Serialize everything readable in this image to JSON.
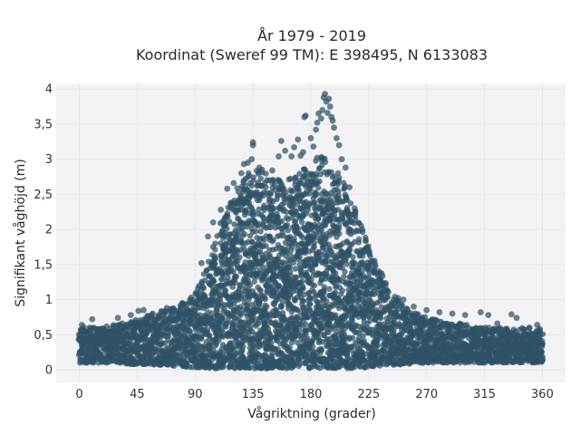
{
  "chart_data": {
    "type": "scatter",
    "title_lines": [
      "År 1979 - 2019",
      "Koordinat (Sweref 99 TM): E 398495, N 6133083"
    ],
    "xlabel": "Vågriktning (grader)",
    "ylabel": "Signifikant våghöjd (m)",
    "xlim": [
      -18,
      378
    ],
    "ylim": [
      -0.18,
      4.08
    ],
    "xticks": [
      0,
      45,
      90,
      135,
      180,
      225,
      270,
      315,
      360
    ],
    "xtick_labels": [
      "0",
      "45",
      "90",
      "135",
      "180",
      "225",
      "270",
      "315",
      "360"
    ],
    "yticks": [
      0,
      0.5,
      1,
      1.5,
      2,
      2.5,
      3,
      3.5,
      4
    ],
    "ytick_labels": [
      "0",
      "0,5",
      "1",
      "1,5",
      "2",
      "2,5",
      "3",
      "3,5",
      "4"
    ],
    "grid": true,
    "marker_color": "#2f5266",
    "marker_opacity": 0.72,
    "envelope": {
      "direction": [
        0,
        10,
        20,
        30,
        40,
        50,
        60,
        70,
        80,
        90,
        100,
        110,
        120,
        130,
        140,
        150,
        160,
        170,
        180,
        190,
        200,
        210,
        220,
        230,
        240,
        250,
        260,
        270,
        280,
        290,
        300,
        310,
        320,
        330,
        340,
        350,
        360
      ],
      "upper_height": [
        0.62,
        0.6,
        0.62,
        0.65,
        0.7,
        0.76,
        0.82,
        0.88,
        0.95,
        1.1,
        1.5,
        2.1,
        2.55,
        2.8,
        2.85,
        2.75,
        2.7,
        2.8,
        3.0,
        3.05,
        2.85,
        2.5,
        2.0,
        1.55,
        1.2,
        0.95,
        0.82,
        0.75,
        0.7,
        0.68,
        0.65,
        0.62,
        0.6,
        0.6,
        0.62,
        0.6,
        0.6
      ],
      "lower_height": [
        0.1,
        0.1,
        0.1,
        0.1,
        0.08,
        0.08,
        0.07,
        0.06,
        0.05,
        0.03,
        0.02,
        0.02,
        0.02,
        0.02,
        0.02,
        0.02,
        0.02,
        0.02,
        0.02,
        0.02,
        0.02,
        0.02,
        0.03,
        0.05,
        0.06,
        0.07,
        0.08,
        0.1,
        0.1,
        0.1,
        0.1,
        0.1,
        0.1,
        0.1,
        0.1,
        0.1,
        0.1
      ]
    },
    "outlier_points": [
      {
        "x": 2,
        "y": 0.64
      },
      {
        "x": 10,
        "y": 0.72
      },
      {
        "x": 30,
        "y": 0.74
      },
      {
        "x": 40,
        "y": 0.78
      },
      {
        "x": 46,
        "y": 0.84
      },
      {
        "x": 50,
        "y": 0.85
      },
      {
        "x": 57,
        "y": 0.8
      },
      {
        "x": 68,
        "y": 0.88
      },
      {
        "x": 80,
        "y": 0.95
      },
      {
        "x": 95,
        "y": 1.52
      },
      {
        "x": 100,
        "y": 1.9
      },
      {
        "x": 104,
        "y": 2.1
      },
      {
        "x": 110,
        "y": 2.28
      },
      {
        "x": 115,
        "y": 2.58
      },
      {
        "x": 120,
        "y": 2.66
      },
      {
        "x": 126,
        "y": 2.8
      },
      {
        "x": 128,
        "y": 2.93
      },
      {
        "x": 131,
        "y": 2.95
      },
      {
        "x": 134,
        "y": 3.0
      },
      {
        "x": 135,
        "y": 3.2
      },
      {
        "x": 135,
        "y": 3.24
      },
      {
        "x": 140,
        "y": 2.88
      },
      {
        "x": 142,
        "y": 2.85
      },
      {
        "x": 146,
        "y": 2.7
      },
      {
        "x": 150,
        "y": 2.84
      },
      {
        "x": 155,
        "y": 3.04
      },
      {
        "x": 157,
        "y": 3.26
      },
      {
        "x": 160,
        "y": 3.12
      },
      {
        "x": 165,
        "y": 3.04
      },
      {
        "x": 167,
        "y": 3.17
      },
      {
        "x": 170,
        "y": 3.28
      },
      {
        "x": 172,
        "y": 3.05
      },
      {
        "x": 174,
        "y": 3.1
      },
      {
        "x": 175,
        "y": 3.6
      },
      {
        "x": 176,
        "y": 3.62
      },
      {
        "x": 180,
        "y": 3.3
      },
      {
        "x": 182,
        "y": 3.18
      },
      {
        "x": 184,
        "y": 3.42
      },
      {
        "x": 185,
        "y": 3.52
      },
      {
        "x": 186,
        "y": 3.65
      },
      {
        "x": 188,
        "y": 3.58
      },
      {
        "x": 189,
        "y": 3.7
      },
      {
        "x": 190,
        "y": 3.88
      },
      {
        "x": 191,
        "y": 3.93
      },
      {
        "x": 192,
        "y": 3.82
      },
      {
        "x": 193,
        "y": 3.66
      },
      {
        "x": 194,
        "y": 3.86
      },
      {
        "x": 195,
        "y": 3.75
      },
      {
        "x": 196,
        "y": 3.6
      },
      {
        "x": 197,
        "y": 3.55
      },
      {
        "x": 198,
        "y": 3.45
      },
      {
        "x": 200,
        "y": 3.3
      },
      {
        "x": 202,
        "y": 3.2
      },
      {
        "x": 204,
        "y": 3.0
      },
      {
        "x": 207,
        "y": 2.88
      },
      {
        "x": 210,
        "y": 2.6
      },
      {
        "x": 214,
        "y": 2.3
      },
      {
        "x": 220,
        "y": 2.0
      },
      {
        "x": 224,
        "y": 1.7
      },
      {
        "x": 228,
        "y": 1.55
      },
      {
        "x": 233,
        "y": 1.4
      },
      {
        "x": 238,
        "y": 1.2
      },
      {
        "x": 248,
        "y": 1.02
      },
      {
        "x": 252,
        "y": 1.0
      },
      {
        "x": 260,
        "y": 0.9
      },
      {
        "x": 270,
        "y": 0.85
      },
      {
        "x": 280,
        "y": 0.82
      },
      {
        "x": 290,
        "y": 0.8
      },
      {
        "x": 300,
        "y": 0.78
      },
      {
        "x": 312,
        "y": 0.82
      },
      {
        "x": 318,
        "y": 0.78
      },
      {
        "x": 325,
        "y": 0.66
      },
      {
        "x": 336,
        "y": 0.79
      },
      {
        "x": 340,
        "y": 0.74
      },
      {
        "x": 350,
        "y": 0.6
      },
      {
        "x": 356,
        "y": 0.64
      },
      {
        "x": 358,
        "y": 0.58
      }
    ]
  }
}
